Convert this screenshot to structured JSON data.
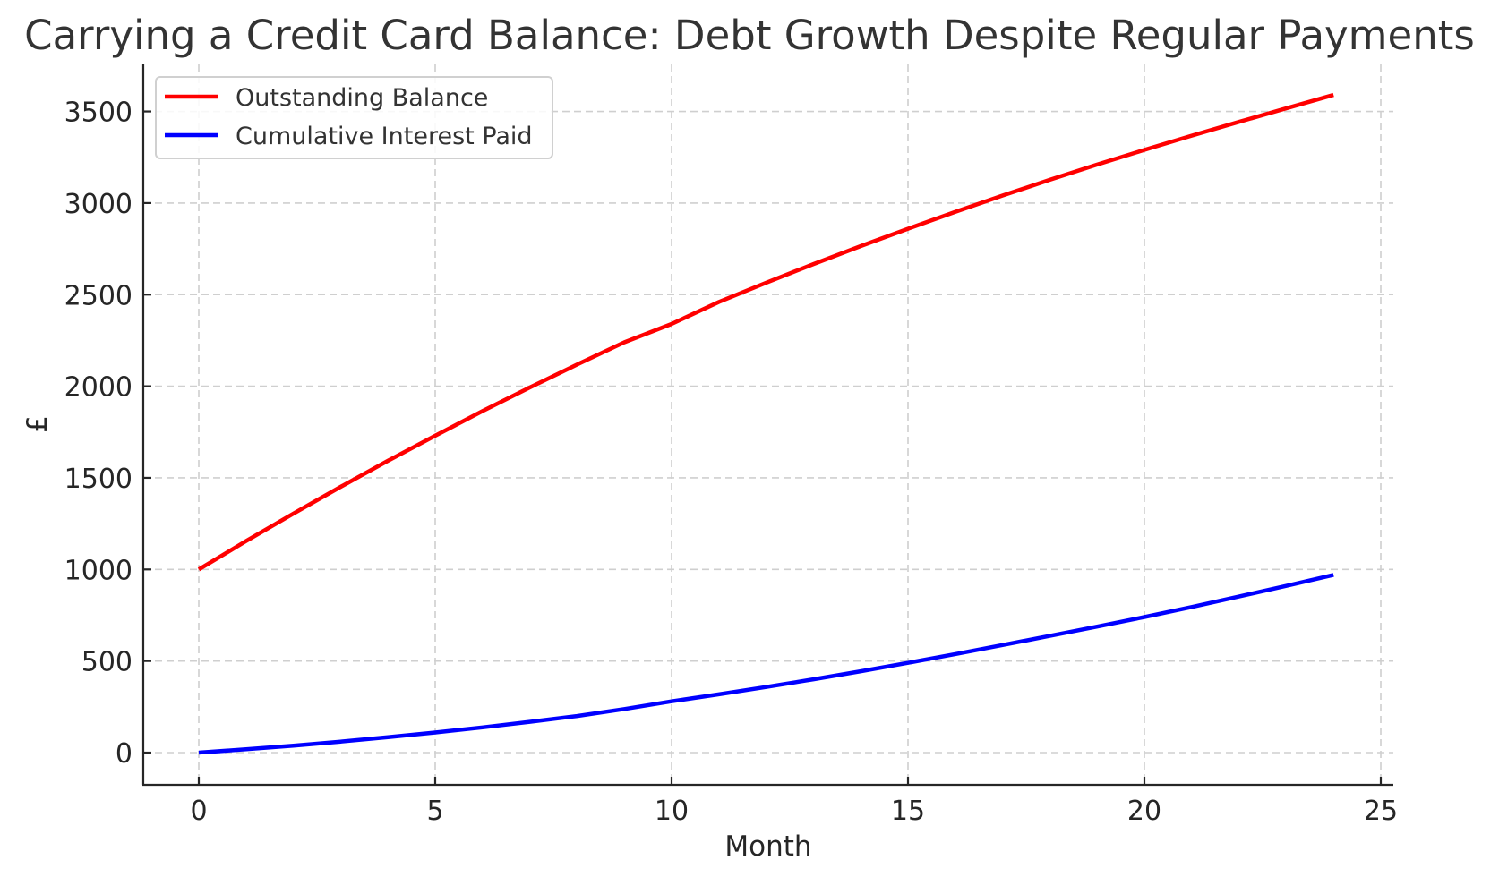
{
  "chart_data": {
    "type": "line",
    "title": "Carrying a Credit Card Balance: Debt Growth Despite Regular Payments",
    "xlabel": "Month",
    "ylabel": "£",
    "xlim": [
      -1.2,
      25.2
    ],
    "ylim": [
      -175,
      3750
    ],
    "xticks": [
      0,
      5,
      10,
      15,
      20,
      25
    ],
    "yticks": [
      0,
      500,
      1000,
      1500,
      2000,
      2500,
      3000,
      3500
    ],
    "grid": true,
    "legend_position": "upper left",
    "x": [
      0,
      1,
      2,
      3,
      4,
      5,
      6,
      7,
      8,
      9,
      10,
      11,
      12,
      13,
      14,
      15,
      16,
      17,
      18,
      19,
      20,
      21,
      22,
      23,
      24
    ],
    "series": [
      {
        "name": "Outstanding Balance",
        "color": "#ff0000",
        "values": [
          1000,
          1155,
          1305,
          1451,
          1593,
          1730,
          1864,
          1993,
          2118,
          2240,
          2340,
          2460,
          2565,
          2667,
          2765,
          2860,
          2952,
          3041,
          3127,
          3210,
          3290,
          3368,
          3443,
          3517,
          3590
        ]
      },
      {
        "name": "Cumulative Interest Paid",
        "color": "#0000ff",
        "values": [
          0,
          18,
          38,
          60,
          84,
          110,
          138,
          168,
          200,
          238,
          280,
          318,
          358,
          400,
          444,
          490,
          538,
          587,
          637,
          688,
          740,
          795,
          852,
          910,
          970
        ]
      }
    ]
  },
  "legend": {
    "items": [
      {
        "label": "Outstanding Balance",
        "color": "#ff0000"
      },
      {
        "label": "Cumulative Interest Paid",
        "color": "#0000ff"
      }
    ]
  },
  "axes": {
    "xtick_labels": [
      "0",
      "5",
      "10",
      "15",
      "20",
      "25"
    ],
    "ytick_labels": [
      "0",
      "500",
      "1000",
      "1500",
      "2000",
      "2500",
      "3000",
      "3500"
    ]
  }
}
